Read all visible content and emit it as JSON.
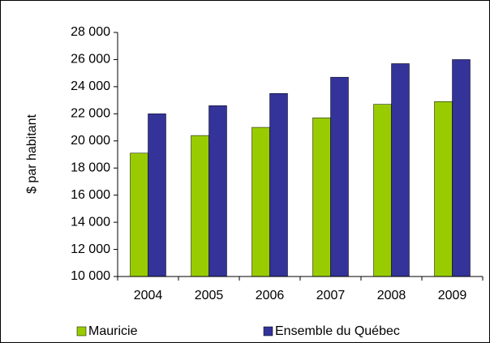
{
  "chart_data": {
    "type": "bar",
    "ylabel": "$ par habitant",
    "categories": [
      "2004",
      "2005",
      "2006",
      "2007",
      "2008",
      "2009"
    ],
    "series": [
      {
        "name": "Mauricie",
        "color": "#99cc00",
        "values": [
          19100,
          20400,
          21000,
          21700,
          22700,
          22900
        ]
      },
      {
        "name": "Ensemble du Québec",
        "color": "#333399",
        "values": [
          22000,
          22600,
          23500,
          24700,
          25700,
          26000
        ]
      }
    ],
    "ylim": [
      10000,
      28000
    ],
    "yticks": [
      {
        "value": 10000,
        "label": "10 000"
      },
      {
        "value": 12000,
        "label": "12 000"
      },
      {
        "value": 14000,
        "label": "14 000"
      },
      {
        "value": 16000,
        "label": "16 000"
      },
      {
        "value": 18000,
        "label": "18 000"
      },
      {
        "value": 20000,
        "label": "20 000"
      },
      {
        "value": 22000,
        "label": "22 000"
      },
      {
        "value": 24000,
        "label": "24 000"
      },
      {
        "value": 26000,
        "label": "26 000"
      },
      {
        "value": 28000,
        "label": "28 000"
      }
    ],
    "legend": "bottom"
  }
}
